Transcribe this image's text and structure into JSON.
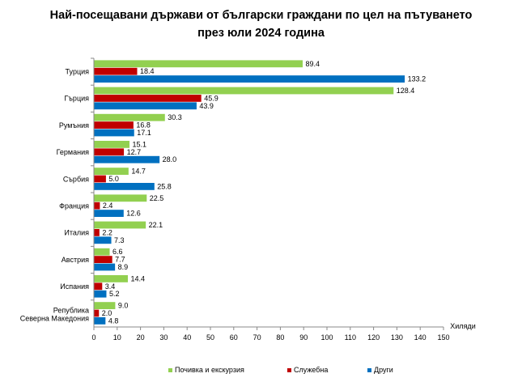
{
  "colors": {
    "series0": "#92d050",
    "series1": "#c00000",
    "series2": "#0070c0",
    "axis": "#888888",
    "grid": "#d9d9d9"
  },
  "chart_data": {
    "type": "bar",
    "orientation": "horizontal",
    "title_lines": [
      "Най-посещавани държави от български граждани по цел на пътуването",
      "през юли 2024 година"
    ],
    "xlabel": "Хиляди",
    "xlim": [
      0,
      150
    ],
    "xticks": [
      0,
      10,
      20,
      30,
      40,
      50,
      60,
      70,
      80,
      90,
      100,
      110,
      120,
      130,
      140,
      150
    ],
    "grid": false,
    "legend_position": "bottom",
    "categories": [
      [
        "Турция"
      ],
      [
        "Гърция"
      ],
      [
        "Румъния"
      ],
      [
        "Германия"
      ],
      [
        "Сърбия"
      ],
      [
        "Франция"
      ],
      [
        "Италия"
      ],
      [
        "Австрия"
      ],
      [
        "Испания"
      ],
      [
        "Република",
        "Северна Македония"
      ]
    ],
    "series": [
      {
        "name": "Почивка и екскурзия",
        "values": [
          89.4,
          128.4,
          30.3,
          15.1,
          14.7,
          22.5,
          22.1,
          6.6,
          14.4,
          9.0
        ],
        "labels": [
          "89.4",
          "128.4",
          "30.3",
          "15.1",
          "14.7",
          "22.5",
          "22.1",
          "6.6",
          "14.4",
          "9.0"
        ]
      },
      {
        "name": "Служебна",
        "values": [
          18.4,
          45.9,
          16.8,
          12.7,
          5.0,
          2.4,
          2.2,
          7.7,
          3.4,
          2.0
        ],
        "labels": [
          "18.4",
          "45.9",
          "16.8",
          "12.7",
          "5.0",
          "2.4",
          "2.2",
          "7.7",
          "3.4",
          "2.0"
        ]
      },
      {
        "name": "Други",
        "values": [
          133.2,
          43.9,
          17.1,
          28.0,
          25.8,
          12.6,
          7.3,
          8.9,
          5.2,
          4.8
        ],
        "labels": [
          "133.2",
          "43.9",
          "17.1",
          "28.0",
          "25.8",
          "12.6",
          "7.3",
          "8.9",
          "5.2",
          "4.8"
        ]
      }
    ]
  }
}
